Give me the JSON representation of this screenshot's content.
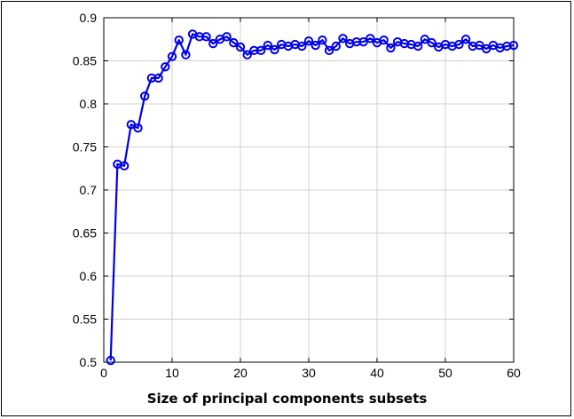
{
  "chart_data": {
    "type": "line",
    "title": "",
    "xlabel": "Size of principal components subsets",
    "ylabel": "",
    "xlim": [
      0,
      60
    ],
    "ylim": [
      0.5,
      0.9
    ],
    "xticks": [
      0,
      10,
      20,
      30,
      40,
      50,
      60
    ],
    "yticks": [
      0.5,
      0.55,
      0.6,
      0.65,
      0.7,
      0.75,
      0.8,
      0.85,
      0.9
    ],
    "ytick_labels": [
      "0.5",
      "0.55",
      "0.6",
      "0.65",
      "0.7",
      "0.75",
      "0.8",
      "0.85",
      "0.9"
    ],
    "xtick_labels": [
      "0",
      "10",
      "20",
      "30",
      "40",
      "50",
      "60"
    ],
    "grid": true,
    "legend": "none",
    "marker": "circle",
    "series": [
      {
        "color": "#0000e6",
        "x": [
          1,
          2,
          3,
          4,
          5,
          6,
          7,
          8,
          9,
          10,
          11,
          12,
          13,
          14,
          15,
          16,
          17,
          18,
          19,
          20,
          21,
          22,
          23,
          24,
          25,
          26,
          27,
          28,
          29,
          30,
          31,
          32,
          33,
          34,
          35,
          36,
          37,
          38,
          39,
          40,
          41,
          42,
          43,
          44,
          45,
          46,
          47,
          48,
          49,
          50,
          51,
          52,
          53,
          54,
          55,
          56,
          57,
          58,
          59,
          60
        ],
        "y": [
          0.502,
          0.73,
          0.728,
          0.776,
          0.772,
          0.809,
          0.83,
          0.83,
          0.843,
          0.855,
          0.874,
          0.857,
          0.881,
          0.878,
          0.878,
          0.87,
          0.875,
          0.878,
          0.871,
          0.866,
          0.857,
          0.862,
          0.862,
          0.868,
          0.863,
          0.869,
          0.867,
          0.869,
          0.867,
          0.873,
          0.868,
          0.874,
          0.862,
          0.867,
          0.876,
          0.87,
          0.872,
          0.872,
          0.876,
          0.871,
          0.874,
          0.865,
          0.872,
          0.87,
          0.869,
          0.867,
          0.875,
          0.871,
          0.866,
          0.869,
          0.867,
          0.869,
          0.875,
          0.867,
          0.868,
          0.864,
          0.868,
          0.865,
          0.867,
          0.868
        ]
      }
    ]
  }
}
